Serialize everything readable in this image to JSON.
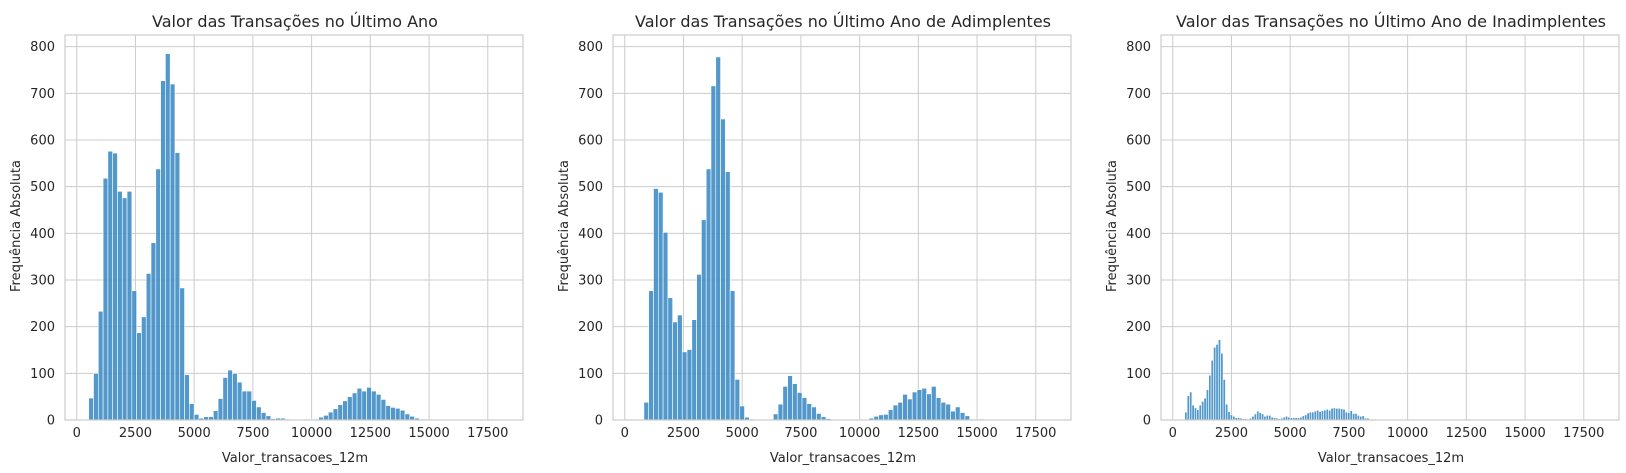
{
  "chart_data": [
    {
      "type": "bar",
      "title": "Valor das Transações no Último Ano",
      "xlabel": "Valor_transacoes_12m",
      "ylabel": "Frequência Absoluta",
      "xlim": [
        -500,
        19000
      ],
      "ylim": [
        0,
        825
      ],
      "xticks": [
        0,
        2500,
        5000,
        7500,
        10000,
        12500,
        15000,
        17500
      ],
      "xtick_labels": [
        "0",
        "2500",
        "5000",
        "7500",
        "10000",
        "12500",
        "15000",
        "17500"
      ],
      "yticks": [
        0,
        100,
        200,
        300,
        400,
        500,
        600,
        700,
        800
      ],
      "ytick_labels": [
        "0",
        "100",
        "200",
        "300",
        "400",
        "500",
        "600",
        "700",
        "800"
      ],
      "grid": true,
      "bin_start": 510,
      "bin_width": 204,
      "values": [
        47,
        100,
        233,
        518,
        576,
        572,
        490,
        476,
        490,
        277,
        187,
        221,
        314,
        380,
        538,
        727,
        785,
        720,
        573,
        283,
        97,
        35,
        12,
        4,
        7,
        7,
        20,
        46,
        91,
        107,
        100,
        81,
        62,
        62,
        42,
        28,
        16,
        9,
        3,
        4,
        4,
        2,
        1,
        1,
        1,
        2,
        1,
        2,
        6,
        10,
        17,
        24,
        33,
        41,
        50,
        58,
        68,
        62,
        70,
        62,
        55,
        44,
        31,
        27,
        25,
        21,
        13,
        8,
        4,
        2,
        2,
        1
      ]
    },
    {
      "type": "bar",
      "title": "Valor das Transações no Último Ano de Adimplentes",
      "xlabel": "Valor_transacoes_12m",
      "ylabel": "Frequência Absoluta",
      "xlim": [
        -500,
        19000
      ],
      "ylim": [
        0,
        825
      ],
      "xticks": [
        0,
        2500,
        5000,
        7500,
        10000,
        12500,
        15000,
        17500
      ],
      "xtick_labels": [
        "0",
        "2500",
        "5000",
        "7500",
        "10000",
        "12500",
        "15000",
        "17500"
      ],
      "yticks": [
        0,
        100,
        200,
        300,
        400,
        500,
        600,
        700,
        800
      ],
      "ytick_labels": [
        "0",
        "100",
        "200",
        "300",
        "400",
        "500",
        "600",
        "700",
        "800"
      ],
      "grid": true,
      "bin_start": 816,
      "bin_width": 204,
      "values": [
        38,
        277,
        496,
        488,
        402,
        262,
        210,
        225,
        146,
        151,
        215,
        312,
        429,
        538,
        716,
        778,
        645,
        532,
        277,
        87,
        30,
        6,
        2,
        1,
        1,
        1,
        1,
        13,
        34,
        72,
        95,
        78,
        59,
        48,
        35,
        28,
        14,
        7,
        3,
        1,
        1,
        1,
        1,
        1,
        1,
        1,
        1,
        4,
        8,
        11,
        12,
        22,
        32,
        38,
        55,
        45,
        60,
        65,
        68,
        56,
        72,
        48,
        38,
        34,
        19,
        28,
        16,
        9,
        2,
        2,
        2,
        1
      ]
    },
    {
      "type": "bar",
      "title": "Valor das Transações no Último Ano de Inadimplentes",
      "xlabel": "Valor_transacoes_12m",
      "ylabel": "Frequência Absoluta",
      "xlim": [
        -500,
        19000
      ],
      "ylim": [
        0,
        825
      ],
      "xticks": [
        0,
        2500,
        5000,
        7500,
        10000,
        12500,
        15000,
        17500
      ],
      "xtick_labels": [
        "0",
        "2500",
        "5000",
        "7500",
        "10000",
        "12500",
        "15000",
        "17500"
      ],
      "yticks": [
        0,
        100,
        200,
        300,
        400,
        500,
        600,
        700,
        800
      ],
      "ytick_labels": [
        "0",
        "100",
        "200",
        "300",
        "400",
        "500",
        "600",
        "700",
        "800"
      ],
      "grid": true,
      "bin_start": 510,
      "bin_width": 102,
      "values": [
        17,
        52,
        60,
        32,
        26,
        22,
        32,
        40,
        47,
        65,
        96,
        128,
        156,
        162,
        172,
        143,
        87,
        34,
        18,
        11,
        8,
        5,
        5,
        4,
        3,
        3,
        2,
        4,
        8,
        13,
        19,
        16,
        13,
        8,
        10,
        10,
        6,
        5,
        4,
        3,
        4,
        6,
        8,
        6,
        5,
        5,
        5,
        5,
        6,
        9,
        11,
        15,
        17,
        17,
        19,
        21,
        18,
        20,
        21,
        23,
        21,
        25,
        26,
        25,
        25,
        24,
        23,
        17,
        16,
        20,
        14,
        14,
        10,
        8,
        9,
        4,
        4,
        2,
        2,
        2,
        1,
        1,
        1,
        1
      ]
    }
  ]
}
